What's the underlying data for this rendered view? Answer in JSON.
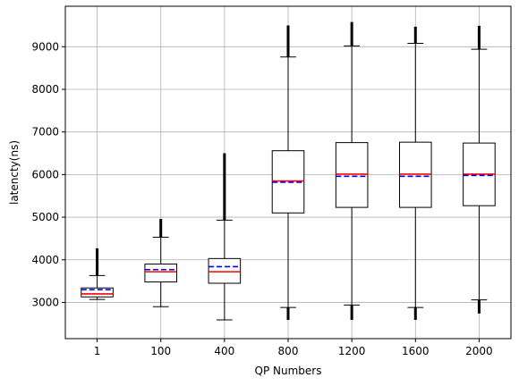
{
  "chart_data": {
    "type": "box",
    "xlabel": "QP Numbers",
    "ylabel": "latencty(ns)",
    "ylim": [
      2150,
      9950
    ],
    "yticks": [
      3000,
      4000,
      5000,
      6000,
      7000,
      8000,
      9000
    ],
    "grid": true,
    "categories": [
      "1",
      "100",
      "400",
      "800",
      "1200",
      "1600",
      "2000"
    ],
    "boxes": [
      {
        "category": "1",
        "whisker_low": 3070,
        "q1": 3130,
        "median": 3200,
        "mean": 3300,
        "q3": 3340,
        "whisker_high": 3630,
        "outlier_high": 4270,
        "outlier_low": null
      },
      {
        "category": "100",
        "whisker_low": 2900,
        "q1": 3480,
        "median": 3720,
        "mean": 3770,
        "q3": 3900,
        "whisker_high": 4530,
        "outlier_high": 4960,
        "outlier_low": null
      },
      {
        "category": "400",
        "whisker_low": 2590,
        "q1": 3450,
        "median": 3720,
        "mean": 3840,
        "q3": 4030,
        "whisker_high": 4930,
        "outlier_high": 6500,
        "outlier_low": null
      },
      {
        "category": "800",
        "whisker_low": 2880,
        "q1": 5100,
        "median": 5850,
        "mean": 5820,
        "q3": 6560,
        "whisker_high": 8760,
        "outlier_high": 9500,
        "outlier_low": 2590
      },
      {
        "category": "1200",
        "whisker_low": 2940,
        "q1": 5230,
        "median": 6010,
        "mean": 5960,
        "q3": 6750,
        "whisker_high": 9020,
        "outlier_high": 9580,
        "outlier_low": 2590
      },
      {
        "category": "1600",
        "whisker_low": 2880,
        "q1": 5230,
        "median": 6010,
        "mean": 5960,
        "q3": 6760,
        "whisker_high": 9080,
        "outlier_high": 9470,
        "outlier_low": 2590
      },
      {
        "category": "2000",
        "whisker_low": 3060,
        "q1": 5270,
        "median": 6010,
        "mean": 5980,
        "q3": 6740,
        "whisker_high": 8940,
        "outlier_high": 9490,
        "outlier_low": 2740
      }
    ],
    "colors": {
      "median": "#ff0000",
      "mean": "#0000ff",
      "box": "#000000",
      "grid": "#b0b0b0"
    }
  }
}
